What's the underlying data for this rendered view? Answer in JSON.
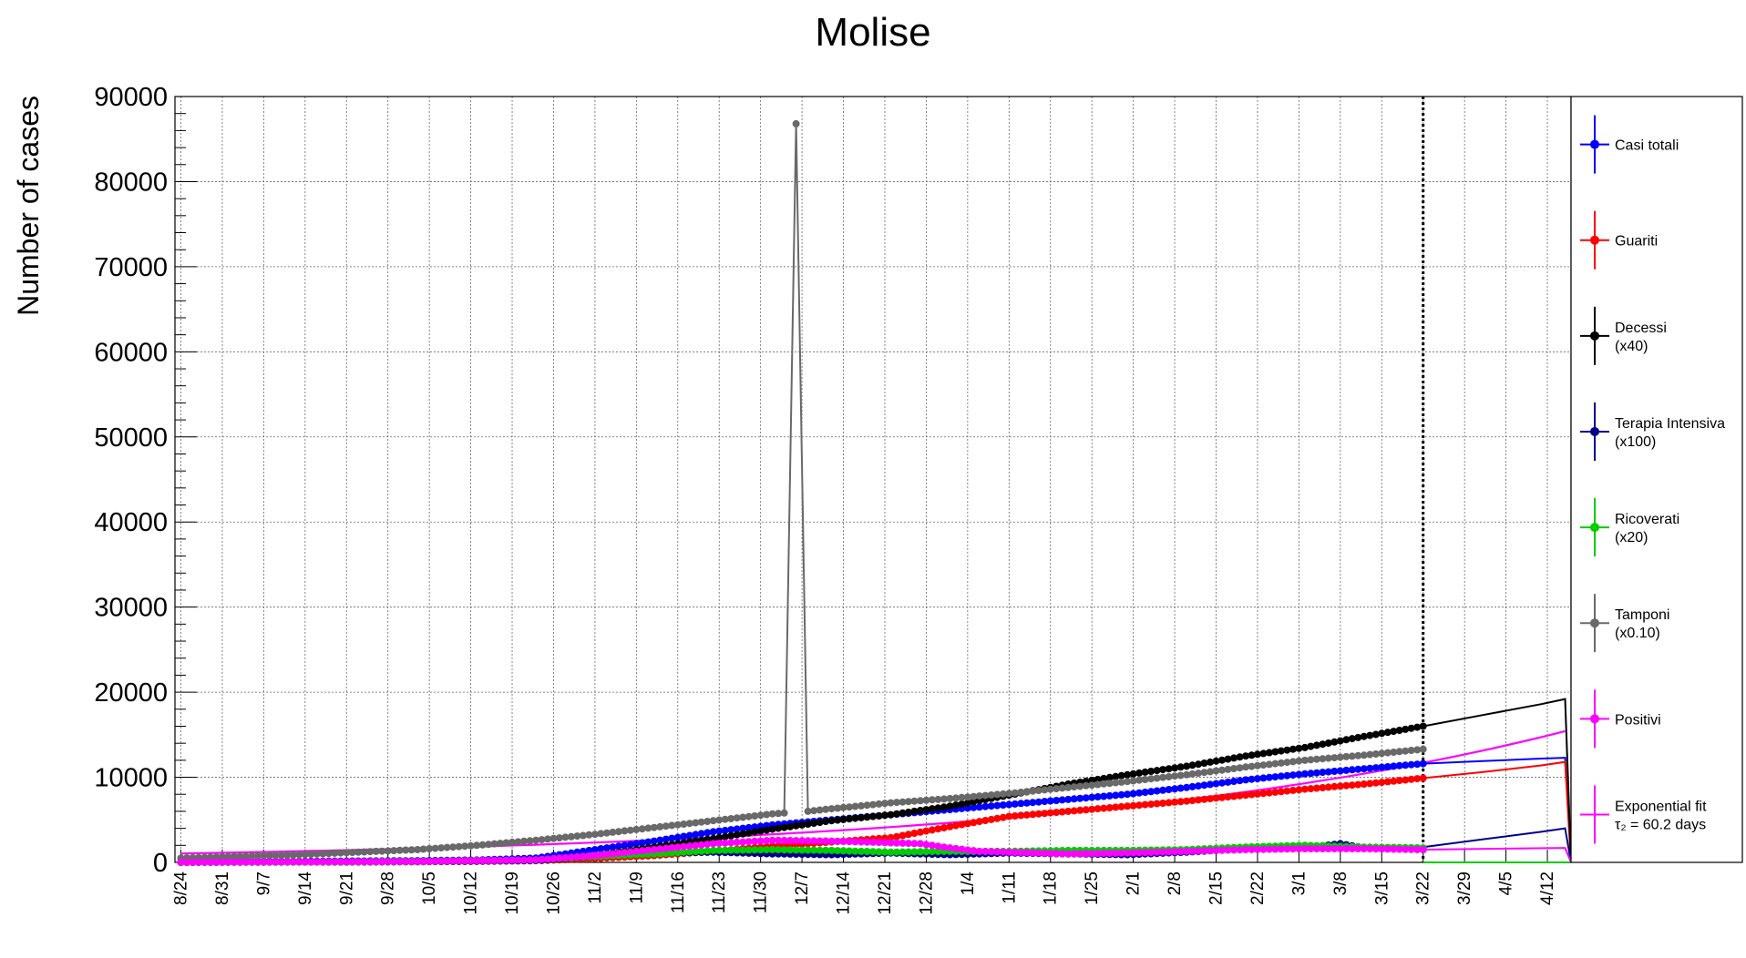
{
  "chart_data": {
    "type": "line",
    "title": "Molise",
    "ylabel": "Number of cases",
    "xlabel": "",
    "ylim": [
      0,
      90000
    ],
    "yticks": [
      0,
      10000,
      20000,
      30000,
      40000,
      50000,
      60000,
      70000,
      80000,
      90000
    ],
    "xrange": [
      -1,
      235
    ],
    "xticks": [
      {
        "label": "8/24",
        "x": 0
      },
      {
        "label": "8/31",
        "x": 7
      },
      {
        "label": "9/7",
        "x": 14
      },
      {
        "label": "9/14",
        "x": 21
      },
      {
        "label": "9/21",
        "x": 28
      },
      {
        "label": "9/28",
        "x": 35
      },
      {
        "label": "10/5",
        "x": 42
      },
      {
        "label": "10/12",
        "x": 49
      },
      {
        "label": "10/19",
        "x": 56
      },
      {
        "label": "10/26",
        "x": 63
      },
      {
        "label": "11/2",
        "x": 70
      },
      {
        "label": "11/9",
        "x": 77
      },
      {
        "label": "11/16",
        "x": 84
      },
      {
        "label": "11/23",
        "x": 91
      },
      {
        "label": "11/30",
        "x": 98
      },
      {
        "label": "12/7",
        "x": 105
      },
      {
        "label": "12/14",
        "x": 112
      },
      {
        "label": "12/21",
        "x": 119
      },
      {
        "label": "12/28",
        "x": 126
      },
      {
        "label": "1/4",
        "x": 133
      },
      {
        "label": "1/11",
        "x": 140
      },
      {
        "label": "1/18",
        "x": 147
      },
      {
        "label": "1/25",
        "x": 154
      },
      {
        "label": "2/1",
        "x": 161
      },
      {
        "label": "2/8",
        "x": 168
      },
      {
        "label": "2/15",
        "x": 175
      },
      {
        "label": "2/22",
        "x": 182
      },
      {
        "label": "3/1",
        "x": 189
      },
      {
        "label": "3/8",
        "x": 196
      },
      {
        "label": "3/15",
        "x": 203
      },
      {
        "label": "3/22",
        "x": 210
      },
      {
        "label": "3/29",
        "x": 217
      },
      {
        "label": "4/5",
        "x": 224
      },
      {
        "label": "4/12",
        "x": 231
      }
    ],
    "vline_x": 210,
    "grid": true,
    "legend_placement": "right",
    "series": [
      {
        "name": "Casi totali",
        "color": "#0000ff",
        "x": [
          0,
          10,
          20,
          30,
          40,
          50,
          60,
          70,
          80,
          90,
          100,
          110,
          120,
          130,
          140,
          150,
          160,
          170,
          180,
          190,
          200,
          210
        ],
        "values": [
          100,
          110,
          130,
          160,
          200,
          280,
          500,
          1500,
          2500,
          3600,
          4400,
          5000,
          5600,
          6200,
          6800,
          7400,
          8000,
          8800,
          9700,
          10400,
          11000,
          11600
        ],
        "proj_x": [
          210,
          220,
          230,
          234,
          235
        ],
        "proj_values": [
          11600,
          11900,
          12200,
          12300,
          0
        ]
      },
      {
        "name": "Guariti",
        "color": "#ff0000",
        "x": [
          0,
          10,
          20,
          30,
          40,
          50,
          60,
          70,
          80,
          90,
          100,
          110,
          120,
          130,
          140,
          150,
          160,
          170,
          180,
          190,
          200,
          210
        ],
        "values": [
          30,
          40,
          50,
          60,
          80,
          120,
          200,
          450,
          800,
          1300,
          1900,
          2400,
          2900,
          4200,
          5400,
          6000,
          6600,
          7200,
          7900,
          8600,
          9200,
          9900
        ],
        "proj_x": [
          210,
          220,
          230,
          234,
          235
        ],
        "proj_values": [
          9900,
          10600,
          11400,
          11800,
          0
        ]
      },
      {
        "name": "Decessi",
        "name2": "(x40)",
        "color": "#000000",
        "x": [
          0,
          10,
          20,
          30,
          40,
          50,
          60,
          70,
          80,
          90,
          100,
          110,
          120,
          130,
          140,
          150,
          160,
          170,
          180,
          190,
          200,
          210
        ],
        "values": [
          20,
          30,
          40,
          50,
          80,
          150,
          300,
          800,
          1800,
          2800,
          3900,
          4900,
          5600,
          6600,
          7900,
          9200,
          10300,
          11300,
          12500,
          13500,
          14800,
          16000
        ],
        "proj_x": [
          210,
          220,
          230,
          234,
          235
        ],
        "proj_values": [
          16000,
          17300,
          18600,
          19200,
          0
        ]
      },
      {
        "name": "Terapia Intensiva",
        "name2": "(x100)",
        "color": "#00008b",
        "x": [
          0,
          20,
          40,
          60,
          70,
          80,
          90,
          100,
          110,
          120,
          130,
          140,
          150,
          160,
          170,
          180,
          190,
          196,
          200,
          210
        ],
        "values": [
          0,
          50,
          100,
          200,
          700,
          1100,
          1200,
          1000,
          900,
          1100,
          900,
          1100,
          1000,
          900,
          1200,
          1600,
          1700,
          2200,
          1700,
          1500
        ],
        "proj_x": [
          210,
          220,
          230,
          234,
          235
        ],
        "proj_values": [
          1800,
          2700,
          3600,
          4000,
          0
        ]
      },
      {
        "name": "Ricoverati",
        "name2": "(x20)",
        "color": "#00cc00",
        "x": [
          0,
          20,
          40,
          60,
          70,
          80,
          90,
          100,
          110,
          120,
          130,
          140,
          150,
          160,
          170,
          180,
          190,
          200,
          210
        ],
        "values": [
          0,
          60,
          120,
          300,
          700,
          1000,
          1400,
          1500,
          1400,
          1200,
          1300,
          1300,
          1400,
          1400,
          1500,
          1800,
          2000,
          1800,
          1700
        ],
        "proj_x": [
          210,
          235
        ],
        "proj_values": [
          0,
          0
        ]
      },
      {
        "name": "Tamponi",
        "name2": "(x0.10)",
        "color": "#696969",
        "x": [
          0,
          10,
          20,
          30,
          40,
          50,
          60,
          70,
          80,
          90,
          100,
          102,
          104,
          106,
          110,
          120,
          130,
          140,
          150,
          160,
          170,
          180,
          190,
          200,
          210
        ],
        "values": [
          500,
          700,
          900,
          1200,
          1500,
          2000,
          2600,
          3300,
          4100,
          4900,
          5700,
          5800,
          86800,
          6000,
          6300,
          7000,
          7500,
          8100,
          8800,
          9500,
          10300,
          11200,
          12000,
          12600,
          13300
        ],
        "proj_x": [],
        "proj_values": []
      },
      {
        "name": "Positivi",
        "color": "#ff00ff",
        "x": [
          0,
          20,
          40,
          60,
          70,
          80,
          90,
          100,
          110,
          120,
          125,
          130,
          135,
          140,
          150,
          160,
          170,
          180,
          190,
          200,
          210
        ],
        "values": [
          0,
          50,
          100,
          300,
          800,
          1500,
          2200,
          2600,
          2500,
          2300,
          2200,
          1700,
          1300,
          1200,
          1000,
          1100,
          1300,
          1500,
          1600,
          1600,
          1500
        ],
        "proj_x": [
          210,
          234,
          235
        ],
        "proj_values": [
          1500,
          1700,
          0
        ]
      }
    ],
    "fit": {
      "name": "Exponential fit",
      "label2": "τ₂ = 60.2 days",
      "color": "#ff00ff",
      "x0": 0,
      "x1": 234,
      "tau": 60.2,
      "y_at_210": 11700
    }
  }
}
